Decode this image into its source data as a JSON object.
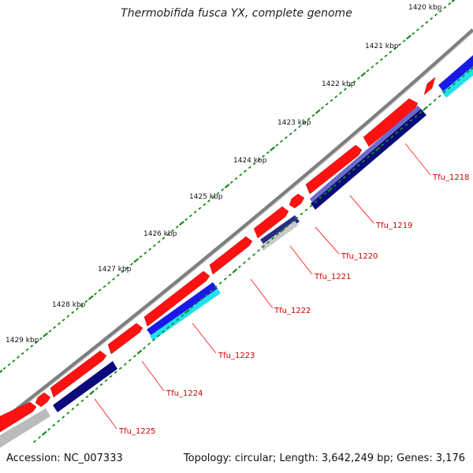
{
  "title": "Thermobifida fusca YX, complete genome",
  "footer": {
    "accession": "Accession: NC_007333",
    "summary": "Topology: circular; Length: 3,642,249 bp; Genes: 3,176"
  },
  "colors": {
    "backbone": "#888888",
    "forward_gene": "#ff1111",
    "reverse_gene": "#0a0a7a",
    "reverse_gene_light": "#6a6acc",
    "cyan_gene": "#22e0f0",
    "blue_gene": "#1a1ae8",
    "gray_gene": "#bbbbbb",
    "tick": "#1a8a1a",
    "label": "#cc0000",
    "leader": "#ff3333"
  },
  "scale_labels": [
    "1420 kbp",
    "1421 kbp",
    "1422 kbp",
    "1423 kbp",
    "1424 kbp",
    "1425 kbp",
    "1426 kbp",
    "1427 kbp",
    "1428 kbp",
    "1429 kbp"
  ],
  "gene_labels": [
    "Tfu_1218",
    "Tfu_1219",
    "Tfu_1220",
    "Tfu_1221",
    "Tfu_1222",
    "Tfu_1223",
    "Tfu_1224",
    "Tfu_1225"
  ]
}
